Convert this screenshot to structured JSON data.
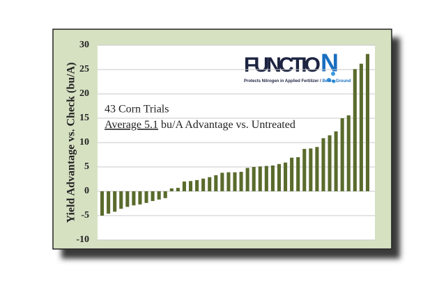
{
  "chart_data": {
    "type": "bar",
    "y_label": "Yield Advantage vs. Check (bu/A)",
    "annotations": [
      "43 Corn Trials",
      "Average 5.1",
      " bu/A Advantage vs. Untreated"
    ],
    "values": [
      -5.0,
      -4.6,
      -4.2,
      -3.6,
      -3.2,
      -2.9,
      -2.7,
      -2.4,
      -2.0,
      -1.7,
      -1.4,
      0.6,
      0.7,
      2.0,
      2.1,
      2.3,
      2.6,
      2.9,
      3.3,
      3.8,
      3.9,
      3.9,
      4.0,
      4.8,
      5.0,
      5.1,
      5.2,
      5.3,
      5.6,
      5.9,
      6.9,
      7.0,
      8.7,
      8.8,
      9.1,
      10.9,
      11.5,
      12.3,
      15.0,
      15.6,
      25.1,
      26.2,
      28.2
    ],
    "color": "#5a6b2c",
    "ylim": [
      -10,
      30
    ],
    "yticks": [
      -10,
      -5,
      0,
      5,
      10,
      15,
      20,
      25,
      30
    ],
    "grid": true
  },
  "logo": {
    "name_start": "FUNCTIO",
    "name_end": "N",
    "tagline_start": "Protects Nitrogen in Applied Fertilizer / ",
    "tagline_end": "Below Ground"
  }
}
